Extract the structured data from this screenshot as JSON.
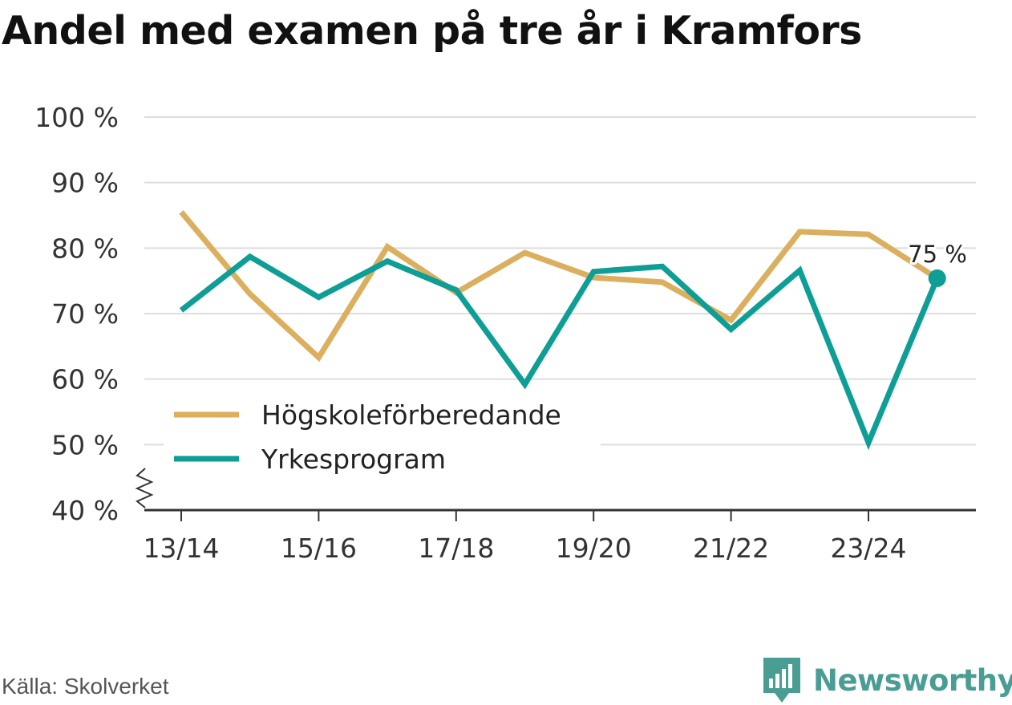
{
  "title": "Andel med examen på tre år i Kramfors",
  "source": "Källa: Skolverket",
  "brand": "Newsworthy",
  "chart_data": {
    "type": "line",
    "title": "Andel med examen på tre år i Kramfors",
    "x": [
      "13/14",
      "14/15",
      "15/16",
      "16/17",
      "17/18",
      "18/19",
      "19/20",
      "20/21",
      "21/22",
      "22/23",
      "23/24",
      "24/25"
    ],
    "x_tick_labels": [
      "13/14",
      "15/16",
      "17/18",
      "19/20",
      "21/22",
      "23/24"
    ],
    "y_tick_labels": [
      "40 %",
      "50 %",
      "60 %",
      "70 %",
      "80 %",
      "90 %",
      "100 %"
    ],
    "ylim": [
      40,
      100
    ],
    "grid": true,
    "legend_position": "bottom-left",
    "series": [
      {
        "name": "Högskoleförberedande",
        "color": "#dbaf5e",
        "values": [
          85.5,
          73.0,
          63.3,
          80.2,
          73.2,
          79.3,
          75.5,
          74.8,
          69.0,
          82.5,
          82.1,
          75.4
        ]
      },
      {
        "name": "Yrkesprogram",
        "color": "#0e9e96",
        "values": [
          70.5,
          78.7,
          72.5,
          78.0,
          73.6,
          59.2,
          76.4,
          77.2,
          67.6,
          76.6,
          50.3,
          75.4
        ]
      }
    ],
    "end_label": "75 %"
  }
}
